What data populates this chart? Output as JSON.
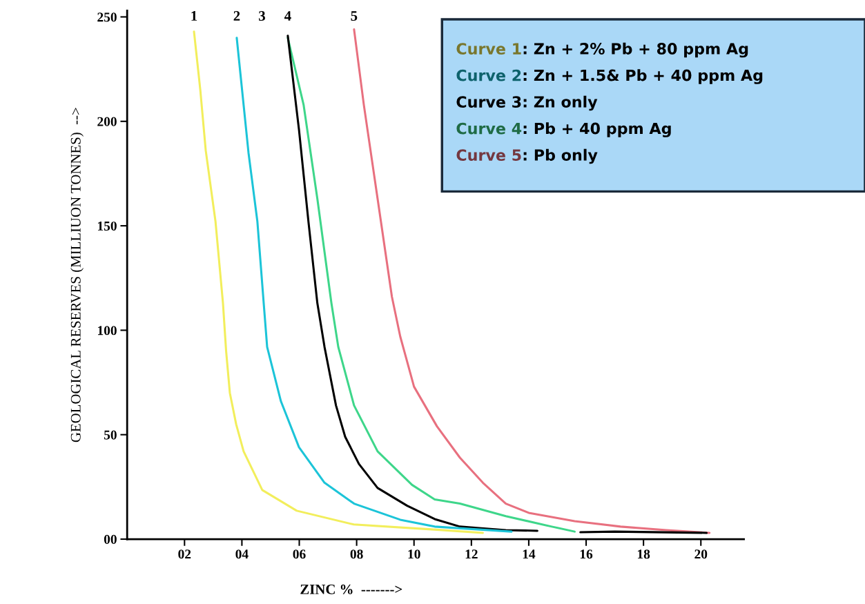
{
  "chart_data": {
    "type": "line",
    "xlabel": "ZINC %  ------->",
    "ylabel": "GEOLOGICAL RESERVES (MILLIUON TONNES)  -->",
    "xlim": [
      0,
      21.5
    ],
    "ylim": [
      0,
      253
    ],
    "xticks": [
      {
        "value": 2,
        "label": "02"
      },
      {
        "value": 4,
        "label": "04"
      },
      {
        "value": 6,
        "label": "06"
      },
      {
        "value": 8,
        "label": "08"
      },
      10,
      12,
      14,
      16,
      18,
      20
    ],
    "yticks": [
      {
        "value": 0,
        "label": "00"
      },
      50,
      100,
      150,
      200,
      250
    ],
    "grid": false,
    "marker": "none",
    "line_style": "solid",
    "series": [
      {
        "name": "Curve 1: Zn + 2% Pb + 80 ppm Ag",
        "color": "#f2ee5c",
        "x": [
          2.33,
          2.55,
          2.74,
          3.08,
          3.34,
          3.45,
          3.58,
          3.8,
          4.06,
          4.71,
          5.91,
          7.9,
          10.7,
          12.4
        ],
        "values": [
          243,
          215,
          186,
          152,
          113,
          90,
          70,
          55,
          42,
          23.5,
          13.6,
          7,
          4.6,
          3
        ]
      },
      {
        "name": "Curve 2: Zn + 1.5& Pb + 40 ppm Ag",
        "color": "#1cc4d8",
        "x": [
          3.82,
          4.23,
          4.54,
          4.76,
          4.88,
          5.36,
          5.99,
          6.88,
          7.91,
          9.52,
          10.72,
          13.4
        ],
        "values": [
          240,
          185,
          152,
          113,
          92,
          66,
          44,
          27,
          17,
          9.3,
          6,
          3.6
        ]
      },
      {
        "name": "Curve 3: Zn only",
        "color": "#000000",
        "x": [
          5.6,
          5.99,
          6.32,
          6.63,
          6.88,
          7.28,
          7.6,
          8.08,
          8.73,
          9.76,
          10.72,
          11.6,
          13.2,
          14.3,
          15.0,
          15.8,
          17.0,
          20.2
        ],
        "values": [
          241,
          196,
          152,
          113,
          92,
          64,
          49,
          36,
          24.5,
          16,
          9.6,
          6,
          4.3,
          4,
          null,
          3.3,
          3.6,
          3
        ]
      },
      {
        "name": "Curve 4: Pb + 40 ppm Ag",
        "color": "#3ed68a",
        "x": [
          5.6,
          6.15,
          6.63,
          7.12,
          7.36,
          7.91,
          8.73,
          9.93,
          10.72,
          11.6,
          13.2,
          14.8,
          15.6
        ],
        "values": [
          240,
          208,
          163,
          113,
          92,
          64,
          42,
          26,
          19,
          17,
          11,
          6,
          3.6
        ]
      },
      {
        "name": "Curve 5: Pb only",
        "color": "#e8707f",
        "x": [
          7.91,
          8.25,
          8.73,
          9.23,
          9.52,
          10.0,
          10.8,
          11.6,
          12.4,
          13.2,
          14.0,
          15.6,
          17.2,
          18.8,
          20.3
        ],
        "values": [
          244,
          208,
          163,
          116,
          97,
          73,
          54,
          39,
          27,
          17,
          12.6,
          8.6,
          6,
          4.3,
          3
        ]
      }
    ],
    "annotations": [
      "1",
      "2",
      "3",
      "4",
      "5"
    ]
  }
}
